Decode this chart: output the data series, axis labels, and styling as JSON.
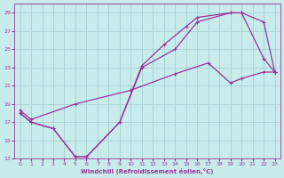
{
  "xlabel": "Windchill (Refroidissement éolien,°C)",
  "xlim": [
    -0.5,
    23.5
  ],
  "ylim": [
    13,
    30
  ],
  "xticks": [
    0,
    1,
    2,
    3,
    4,
    5,
    6,
    7,
    8,
    9,
    10,
    11,
    12,
    13,
    14,
    15,
    16,
    17,
    18,
    19,
    20,
    21,
    22,
    23
  ],
  "yticks": [
    13,
    15,
    17,
    19,
    21,
    23,
    25,
    27,
    29
  ],
  "bg_color": "#c8ecec",
  "grid_color": "#aad4d4",
  "line_color": "#993399",
  "line1_x": [
    0,
    1,
    3,
    5,
    6,
    9,
    11,
    14,
    16,
    19,
    20,
    22,
    23
  ],
  "line1_y": [
    18,
    17,
    16.3,
    13.2,
    13.2,
    17,
    23,
    25,
    28,
    29,
    29,
    24,
    22.5
  ],
  "line2_x": [
    0,
    1,
    3,
    5,
    6,
    9,
    11,
    13,
    15,
    16,
    19,
    20,
    22,
    23
  ],
  "line2_y": [
    18,
    17,
    16.3,
    13.2,
    13.2,
    17,
    23.2,
    25.5,
    27.5,
    28.5,
    29,
    29,
    28,
    22.5
  ],
  "line3_x": [
    0,
    1,
    5,
    10,
    14,
    17,
    19,
    20,
    22,
    23
  ],
  "line3_y": [
    18.3,
    17.3,
    19,
    20.5,
    22.3,
    23.5,
    21.3,
    21.8,
    22.5,
    22.5
  ]
}
